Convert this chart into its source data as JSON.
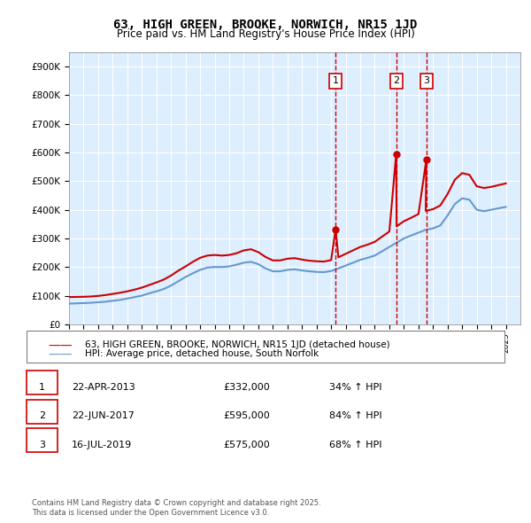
{
  "title": "63, HIGH GREEN, BROOKE, NORWICH, NR15 1JD",
  "subtitle": "Price paid vs. HM Land Registry's House Price Index (HPI)",
  "legend_line1": "63, HIGH GREEN, BROOKE, NORWICH, NR15 1JD (detached house)",
  "legend_line2": "HPI: Average price, detached house, South Norfolk",
  "footer": "Contains HM Land Registry data © Crown copyright and database right 2025.\nThis data is licensed under the Open Government Licence v3.0.",
  "transactions": [
    {
      "num": 1,
      "date": "22-APR-2013",
      "price": 332000,
      "pct": "34%",
      "direction": "↑",
      "year": 2013.31
    },
    {
      "num": 2,
      "date": "22-JUN-2017",
      "price": 595000,
      "pct": "84%",
      "direction": "↑",
      "year": 2017.47
    },
    {
      "num": 3,
      "date": "16-JUL-2019",
      "price": 575000,
      "pct": "68%",
      "direction": "↑",
      "year": 2019.54
    }
  ],
  "red_color": "#cc0000",
  "blue_color": "#6699cc",
  "background_color": "#ddeeff",
  "plot_bg": "#ddeeff",
  "ylim": [
    0,
    950000
  ],
  "xlim_start": 1995,
  "xlim_end": 2026,
  "hpi_x": [
    1995,
    1995.5,
    1996,
    1996.5,
    1997,
    1997.5,
    1998,
    1998.5,
    1999,
    1999.5,
    2000,
    2000.5,
    2001,
    2001.5,
    2002,
    2002.5,
    2003,
    2003.5,
    2004,
    2004.5,
    2005,
    2005.5,
    2006,
    2006.5,
    2007,
    2007.5,
    2008,
    2008.5,
    2009,
    2009.5,
    2010,
    2010.5,
    2011,
    2011.5,
    2012,
    2012.5,
    2013,
    2013.5,
    2014,
    2014.5,
    2015,
    2015.5,
    2016,
    2016.5,
    2017,
    2017.5,
    2018,
    2018.5,
    2019,
    2019.5,
    2020,
    2020.5,
    2021,
    2021.5,
    2022,
    2022.5,
    2023,
    2023.5,
    2024,
    2024.5,
    2025
  ],
  "hpi_y": [
    72000,
    73000,
    74000,
    75000,
    77000,
    79000,
    82000,
    85000,
    90000,
    95000,
    100000,
    108000,
    115000,
    123000,
    135000,
    150000,
    165000,
    178000,
    190000,
    198000,
    200000,
    200000,
    202000,
    208000,
    215000,
    218000,
    210000,
    195000,
    185000,
    185000,
    190000,
    192000,
    188000,
    185000,
    183000,
    182000,
    186000,
    195000,
    205000,
    215000,
    225000,
    232000,
    240000,
    255000,
    270000,
    285000,
    300000,
    310000,
    320000,
    330000,
    335000,
    345000,
    380000,
    420000,
    440000,
    435000,
    400000,
    395000,
    400000,
    405000,
    410000
  ],
  "price_x": [
    1995,
    1995.5,
    1996,
    1996.5,
    1997,
    1997.5,
    1998,
    1998.5,
    1999,
    1999.5,
    2000,
    2000.5,
    2001,
    2001.5,
    2002,
    2002.5,
    2003,
    2003.5,
    2004,
    2004.5,
    2005,
    2005.5,
    2006,
    2006.5,
    2007,
    2007.5,
    2008,
    2008.5,
    2009,
    2009.5,
    2010,
    2010.5,
    2011,
    2011.5,
    2012,
    2012.5,
    2013,
    2013.31,
    2013.5,
    2014,
    2014.5,
    2015,
    2015.5,
    2016,
    2016.5,
    2017,
    2017.47,
    2017.5,
    2018,
    2018.5,
    2019,
    2019.54,
    2019.5,
    2020,
    2020.5,
    2021,
    2021.5,
    2022,
    2022.5,
    2023,
    2023.5,
    2024,
    2024.5,
    2025
  ],
  "price_y": [
    95000,
    95500,
    96000,
    97000,
    99000,
    102000,
    106000,
    110000,
    115000,
    121000,
    128000,
    137000,
    146000,
    156000,
    170000,
    187000,
    202000,
    218000,
    232000,
    240000,
    242000,
    240000,
    242000,
    248000,
    258000,
    262000,
    252000,
    235000,
    223000,
    223000,
    229000,
    231000,
    226000,
    222000,
    220000,
    219000,
    224000,
    332000,
    234000,
    246000,
    258000,
    270000,
    278000,
    288000,
    306000,
    324000,
    595000,
    342000,
    360000,
    372000,
    385000,
    575000,
    396000,
    402000,
    415000,
    455000,
    505000,
    528000,
    522000,
    482000,
    476000,
    480000,
    486000,
    492000
  ]
}
